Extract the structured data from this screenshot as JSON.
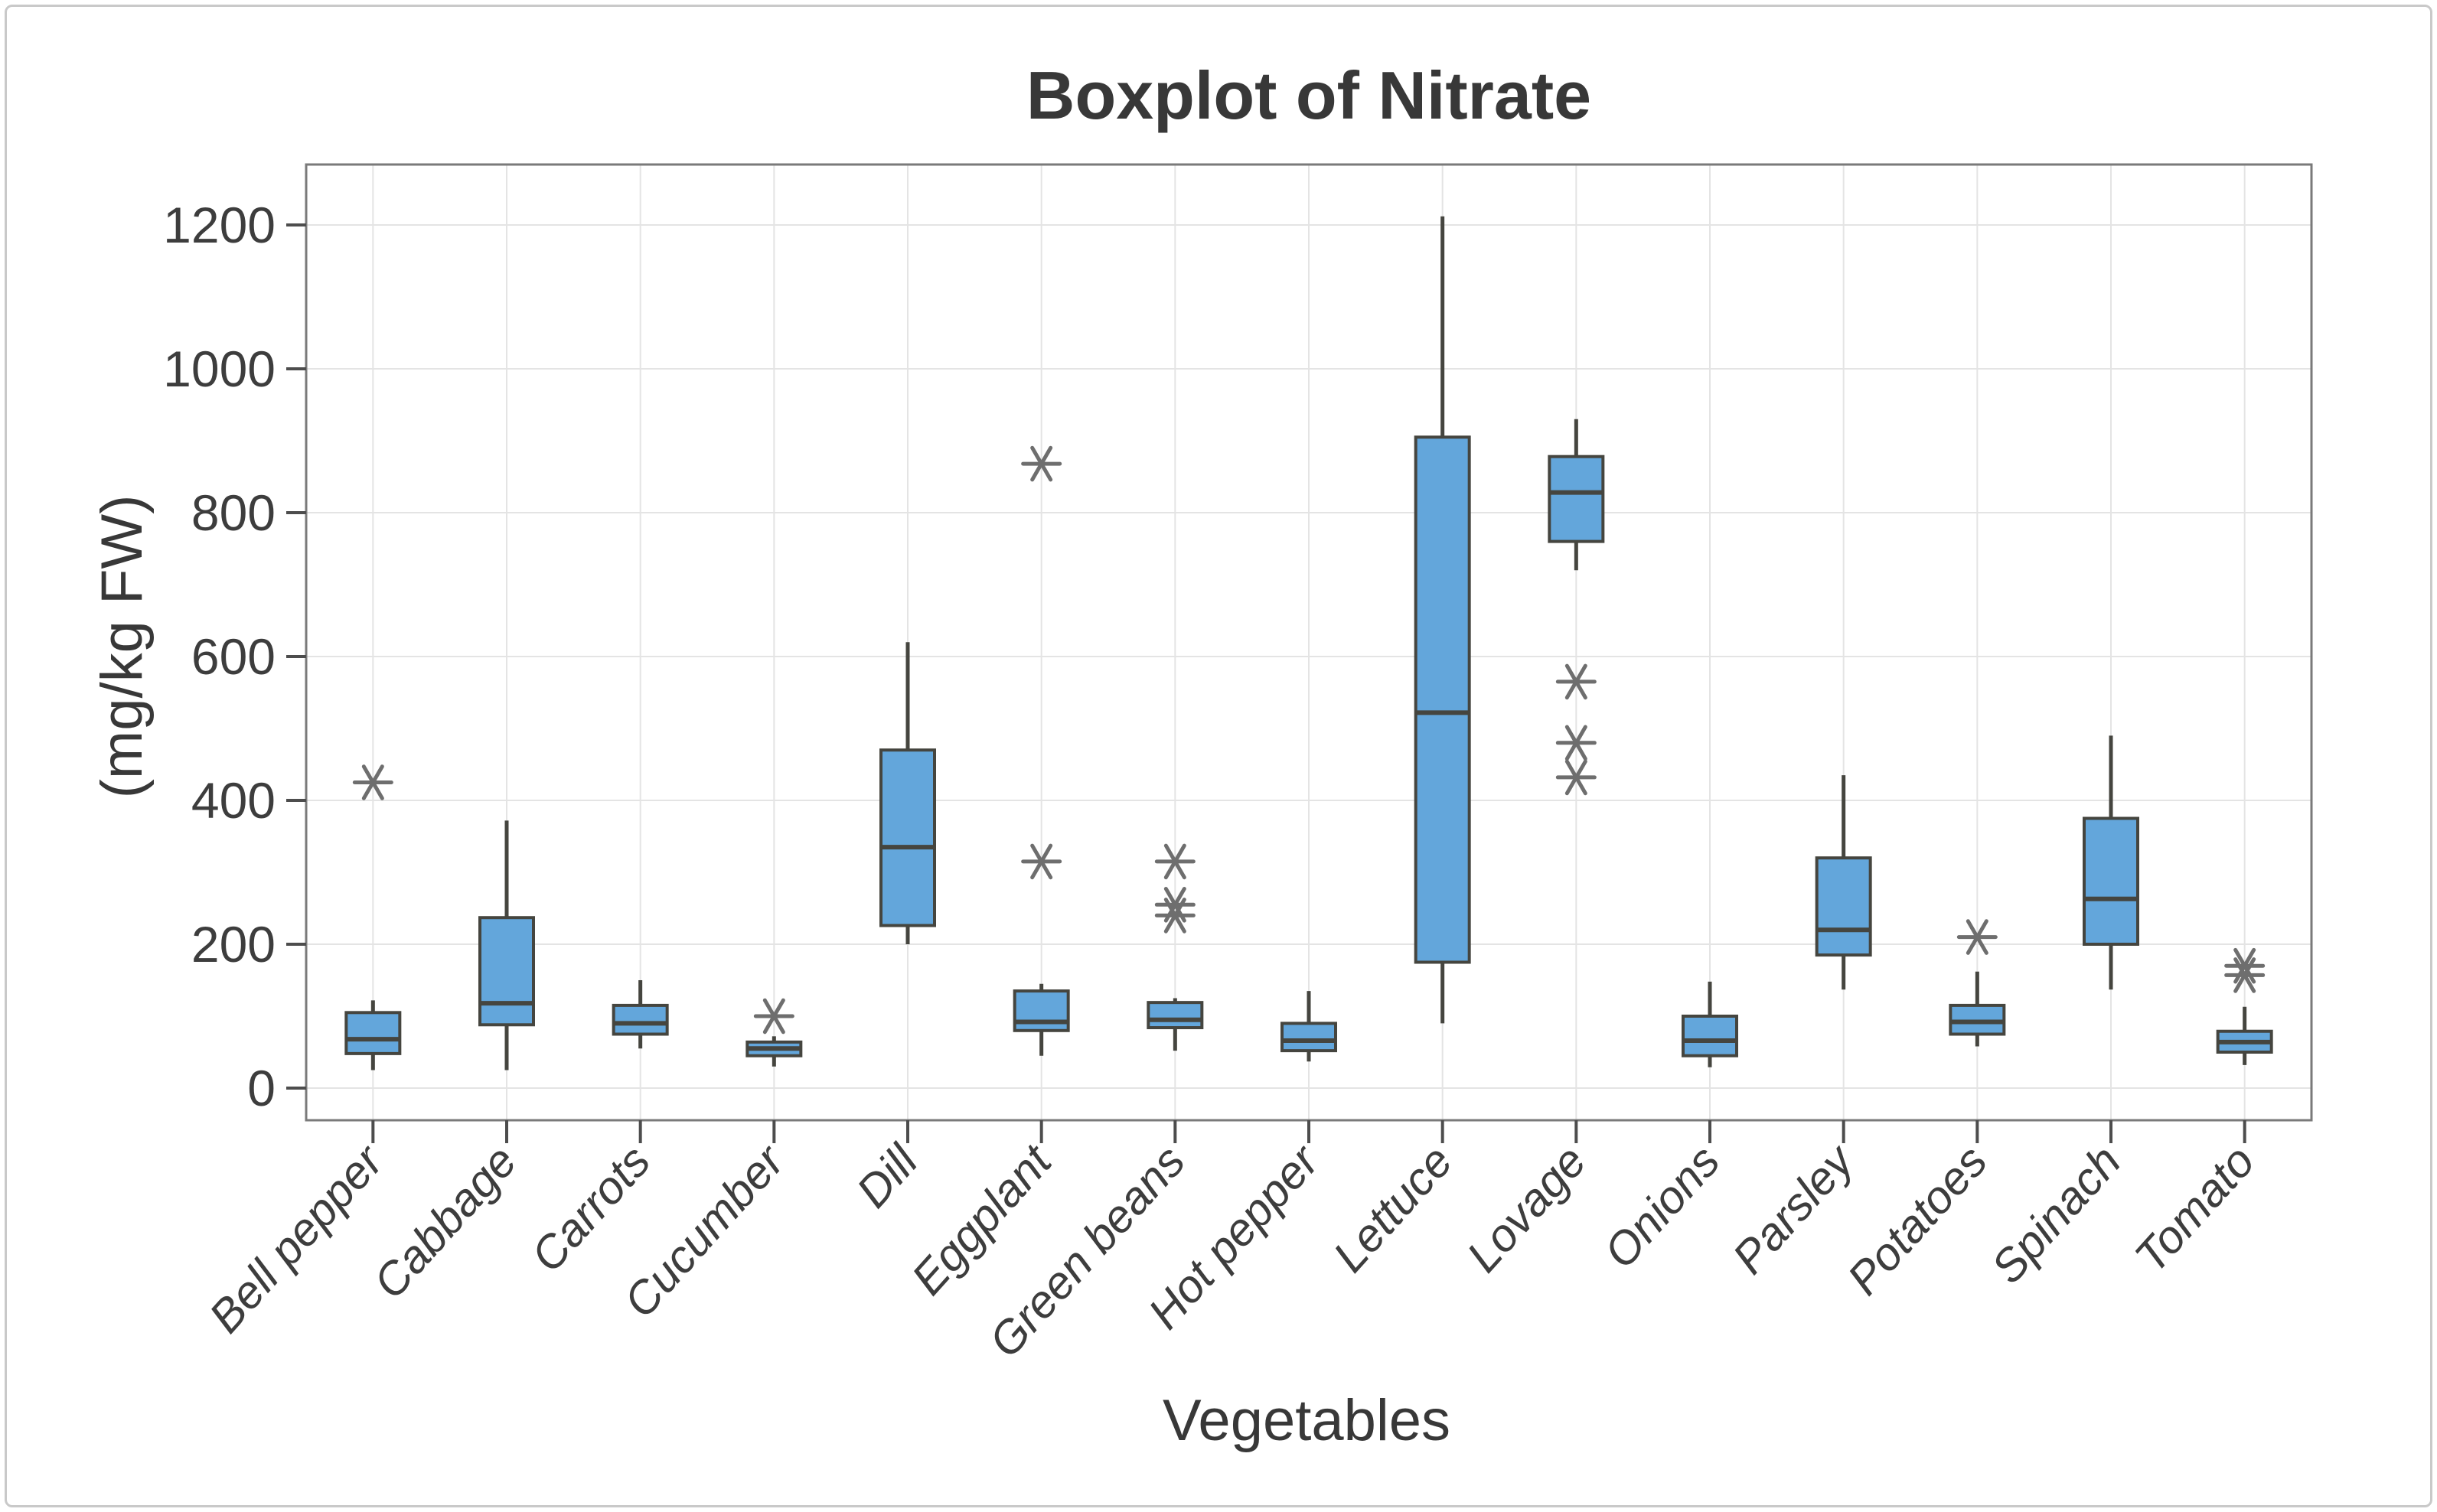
{
  "page": {
    "background": "#ffffff",
    "frame_color": "#c9c9c9"
  },
  "chart_data": {
    "type": "boxplot",
    "title": "Boxplot of Nitrate",
    "xlabel": "Vegetables",
    "ylabel": "(mg/kg FW)",
    "ylim": [
      0,
      1290
    ],
    "yticks": [
      0,
      200,
      400,
      600,
      800,
      1000,
      1200
    ],
    "grid": true,
    "legend": "none",
    "box_fill": "#63A6DB",
    "box_stroke": "#45453F",
    "grid_color": "#e4e4e4",
    "frame_color": "#7a7a7a",
    "outlier_color": "#6e6e6e",
    "categories": [
      "Bell pepper",
      "Cabbage",
      "Carrots",
      "Cucumber",
      "Dill",
      "Eggplant",
      "Green beans",
      "Hot pepper",
      "Lettuce",
      "Lovage",
      "Onions",
      "Parsley",
      "Potatoes",
      "Spinach",
      "Tomato"
    ],
    "series": [
      {
        "name": "Bell pepper",
        "whisker_low": 25,
        "q1": 48,
        "median": 68,
        "q3": 105,
        "whisker_high": 122,
        "outliers": [
          425
        ]
      },
      {
        "name": "Cabbage",
        "whisker_low": 25,
        "q1": 88,
        "median": 118,
        "q3": 237,
        "whisker_high": 372,
        "outliers": []
      },
      {
        "name": "Carrots",
        "whisker_low": 55,
        "q1": 75,
        "median": 90,
        "q3": 115,
        "whisker_high": 150,
        "outliers": []
      },
      {
        "name": "Cucumber",
        "whisker_low": 30,
        "q1": 45,
        "median": 55,
        "q3": 64,
        "whisker_high": 72,
        "outliers": [
          100
        ]
      },
      {
        "name": "Dill",
        "whisker_low": 200,
        "q1": 226,
        "median": 335,
        "q3": 470,
        "whisker_high": 620,
        "outliers": []
      },
      {
        "name": "Eggplant",
        "whisker_low": 45,
        "q1": 80,
        "median": 92,
        "q3": 135,
        "whisker_high": 145,
        "outliers": [
          315,
          868
        ]
      },
      {
        "name": "Green beans",
        "whisker_low": 52,
        "q1": 84,
        "median": 95,
        "q3": 119,
        "whisker_high": 125,
        "outliers": [
          240,
          255,
          315
        ]
      },
      {
        "name": "Hot pepper",
        "whisker_low": 37,
        "q1": 52,
        "median": 66,
        "q3": 90,
        "whisker_high": 135,
        "outliers": []
      },
      {
        "name": "Lettuce",
        "whisker_low": 90,
        "q1": 175,
        "median": 522,
        "q3": 905,
        "whisker_high": 1212,
        "outliers": []
      },
      {
        "name": "Lovage",
        "whisker_low": 720,
        "q1": 760,
        "median": 828,
        "q3": 878,
        "whisker_high": 930,
        "outliers": [
          432,
          480,
          565
        ]
      },
      {
        "name": "Onions",
        "whisker_low": 29,
        "q1": 45,
        "median": 66,
        "q3": 100,
        "whisker_high": 148,
        "outliers": []
      },
      {
        "name": "Parsley",
        "whisker_low": 137,
        "q1": 185,
        "median": 220,
        "q3": 320,
        "whisker_high": 435,
        "outliers": []
      },
      {
        "name": "Potatoes",
        "whisker_low": 58,
        "q1": 75,
        "median": 92,
        "q3": 115,
        "whisker_high": 162,
        "outliers": [
          210
        ]
      },
      {
        "name": "Spinach",
        "whisker_low": 137,
        "q1": 200,
        "median": 263,
        "q3": 375,
        "whisker_high": 490,
        "outliers": []
      },
      {
        "name": "Tomato",
        "whisker_low": 32,
        "q1": 50,
        "median": 64,
        "q3": 79,
        "whisker_high": 113,
        "outliers": [
          157,
          170
        ]
      }
    ]
  }
}
